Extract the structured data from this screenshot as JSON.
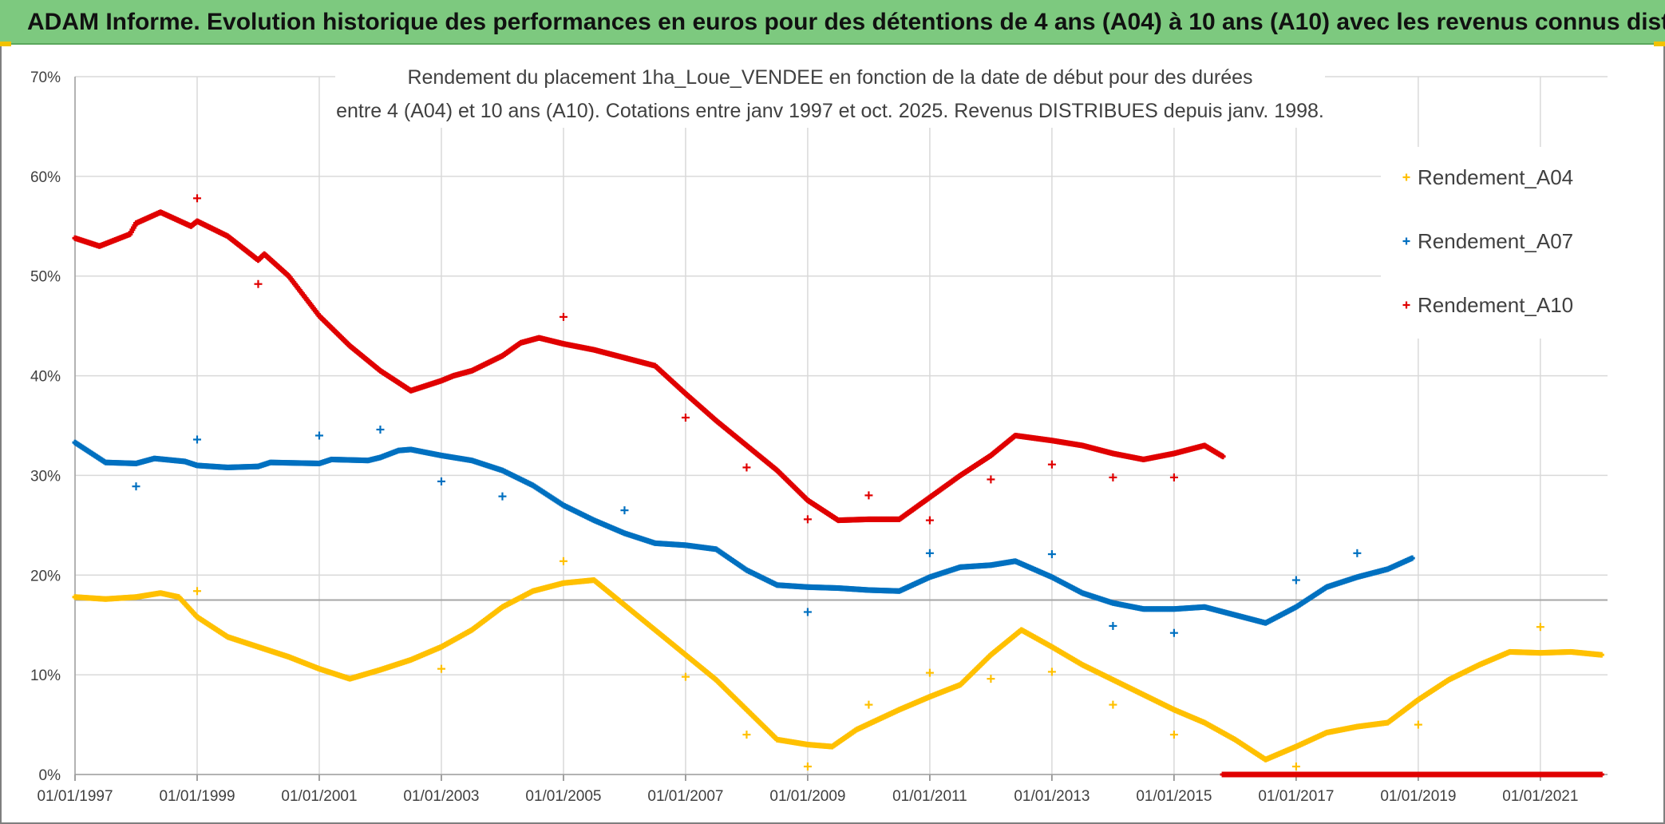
{
  "banner": {
    "title": "ADAM Informe. Evolution historique des performances en euros pour des détentions de 4 ans (A04) à 10 ans (A10) avec les revenus connus distribués"
  },
  "colors": {
    "banner_bg": "#7dc97f",
    "a04": "#ffc000",
    "a07": "#0070c0",
    "a10": "#e00000",
    "grid": "#d9d9d9",
    "reference_line": "#a6a6a6"
  },
  "chart_data": {
    "type": "scatter",
    "title_line1": "Rendement du placement 1ha_Loue_VENDEE en fonction de la date de début pour des durées",
    "title_line2": "entre 4 (A04) et 10 ans (A10). Cotations entre janv 1997 et oct. 2025. Revenus DISTRIBUES depuis janv. 1998.",
    "xlabel": "",
    "ylabel": "",
    "xlim": [
      1997.0,
      2022.1
    ],
    "ylim": [
      0,
      70
    ],
    "x_ticks": [
      1997,
      1999,
      2001,
      2003,
      2005,
      2007,
      2009,
      2011,
      2013,
      2015,
      2017,
      2019,
      2021
    ],
    "x_tick_labels": [
      "01/01/1997",
      "01/01/1999",
      "01/01/2001",
      "01/01/2003",
      "01/01/2005",
      "01/01/2007",
      "01/01/2009",
      "01/01/2011",
      "01/01/2013",
      "01/01/2015",
      "01/01/2017",
      "01/01/2019",
      "01/01/2021"
    ],
    "y_ticks": [
      0,
      10,
      20,
      30,
      40,
      50,
      60,
      70
    ],
    "y_tick_labels": [
      "0%",
      "10%",
      "20%",
      "30%",
      "40%",
      "50%",
      "60%",
      "70%"
    ],
    "reference_line_y": 17.5,
    "legend": [
      "Rendement_A04",
      "Rendement_A07",
      "Rendement_A10"
    ],
    "legend_position": "top-right",
    "series": [
      {
        "name": "Rendement_A04",
        "curve": [
          [
            1997.0,
            17.8
          ],
          [
            1997.5,
            17.6
          ],
          [
            1998.0,
            17.8
          ],
          [
            1998.4,
            18.2
          ],
          [
            1998.7,
            17.8
          ],
          [
            1999.0,
            15.8
          ],
          [
            1999.5,
            13.8
          ],
          [
            2000.0,
            12.8
          ],
          [
            2000.5,
            11.8
          ],
          [
            2001.0,
            10.6
          ],
          [
            2001.5,
            9.6
          ],
          [
            2002.0,
            10.5
          ],
          [
            2002.5,
            11.5
          ],
          [
            2003.0,
            12.8
          ],
          [
            2003.5,
            14.5
          ],
          [
            2004.0,
            16.8
          ],
          [
            2004.5,
            18.4
          ],
          [
            2005.0,
            19.2
          ],
          [
            2005.5,
            19.5
          ],
          [
            2006.0,
            17.0
          ],
          [
            2006.5,
            14.5
          ],
          [
            2007.0,
            12.0
          ],
          [
            2007.5,
            9.5
          ],
          [
            2008.0,
            6.5
          ],
          [
            2008.5,
            3.5
          ],
          [
            2009.0,
            3.0
          ],
          [
            2009.4,
            2.8
          ],
          [
            2009.8,
            4.5
          ],
          [
            2010.5,
            6.5
          ],
          [
            2011.0,
            7.8
          ],
          [
            2011.5,
            9.0
          ],
          [
            2012.0,
            12.0
          ],
          [
            2012.5,
            14.5
          ],
          [
            2013.0,
            12.8
          ],
          [
            2013.5,
            11.0
          ],
          [
            2014.0,
            9.5
          ],
          [
            2014.5,
            8.0
          ],
          [
            2015.0,
            6.5
          ],
          [
            2015.5,
            5.2
          ],
          [
            2016.0,
            3.5
          ],
          [
            2016.5,
            1.5
          ],
          [
            2017.0,
            2.8
          ],
          [
            2017.5,
            4.2
          ],
          [
            2018.0,
            4.8
          ],
          [
            2018.5,
            5.2
          ],
          [
            2019.0,
            7.5
          ],
          [
            2019.5,
            9.5
          ],
          [
            2020.0,
            11.0
          ],
          [
            2020.5,
            12.3
          ],
          [
            2021.0,
            12.2
          ],
          [
            2021.5,
            12.3
          ],
          [
            2022.0,
            12.0
          ]
        ],
        "scatter_points": [
          [
            1999.0,
            18.4
          ],
          [
            2003.0,
            10.6
          ],
          [
            2005.0,
            21.4
          ],
          [
            2007.0,
            9.8
          ],
          [
            2008.0,
            4.0
          ],
          [
            2009.0,
            0.8
          ],
          [
            2010.0,
            7.0
          ],
          [
            2011.0,
            10.2
          ],
          [
            2012.0,
            9.6
          ],
          [
            2013.0,
            10.3
          ],
          [
            2014.0,
            7.0
          ],
          [
            2015.0,
            4.0
          ],
          [
            2017.0,
            0.8
          ],
          [
            2019.0,
            5.0
          ],
          [
            2021.0,
            14.8
          ]
        ]
      },
      {
        "name": "Rendement_A07",
        "curve": [
          [
            1997.0,
            33.3
          ],
          [
            1997.5,
            31.3
          ],
          [
            1998.0,
            31.2
          ],
          [
            1998.3,
            31.7
          ],
          [
            1998.8,
            31.4
          ],
          [
            1999.0,
            31.0
          ],
          [
            1999.5,
            30.8
          ],
          [
            2000.0,
            30.9
          ],
          [
            2000.2,
            31.3
          ],
          [
            2001.0,
            31.2
          ],
          [
            2001.2,
            31.6
          ],
          [
            2001.8,
            31.5
          ],
          [
            2002.0,
            31.8
          ],
          [
            2002.3,
            32.5
          ],
          [
            2002.5,
            32.6
          ],
          [
            2003.0,
            32.0
          ],
          [
            2003.5,
            31.5
          ],
          [
            2004.0,
            30.5
          ],
          [
            2004.5,
            29.0
          ],
          [
            2005.0,
            27.0
          ],
          [
            2005.5,
            25.5
          ],
          [
            2006.0,
            24.2
          ],
          [
            2006.5,
            23.2
          ],
          [
            2007.0,
            23.0
          ],
          [
            2007.5,
            22.6
          ],
          [
            2008.0,
            20.5
          ],
          [
            2008.5,
            19.0
          ],
          [
            2009.0,
            18.8
          ],
          [
            2009.5,
            18.7
          ],
          [
            2010.0,
            18.5
          ],
          [
            2010.5,
            18.4
          ],
          [
            2011.0,
            19.8
          ],
          [
            2011.5,
            20.8
          ],
          [
            2012.0,
            21.0
          ],
          [
            2012.4,
            21.4
          ],
          [
            2013.0,
            19.8
          ],
          [
            2013.5,
            18.2
          ],
          [
            2014.0,
            17.2
          ],
          [
            2014.5,
            16.6
          ],
          [
            2015.0,
            16.6
          ],
          [
            2015.5,
            16.8
          ],
          [
            2016.0,
            16.0
          ],
          [
            2016.5,
            15.2
          ],
          [
            2017.0,
            16.8
          ],
          [
            2017.5,
            18.8
          ],
          [
            2018.0,
            19.8
          ],
          [
            2018.5,
            20.6
          ],
          [
            2018.9,
            21.7
          ]
        ],
        "scatter_points": [
          [
            1998.0,
            28.9
          ],
          [
            1999.0,
            33.6
          ],
          [
            2001.0,
            34.0
          ],
          [
            2002.0,
            34.6
          ],
          [
            2003.0,
            29.4
          ],
          [
            2004.0,
            27.9
          ],
          [
            2006.0,
            26.5
          ],
          [
            2009.0,
            16.3
          ],
          [
            2011.0,
            22.2
          ],
          [
            2013.0,
            22.1
          ],
          [
            2014.0,
            14.9
          ],
          [
            2015.0,
            14.2
          ],
          [
            2017.0,
            19.5
          ],
          [
            2018.0,
            22.2
          ]
        ]
      },
      {
        "name": "Rendement_A10",
        "curve": [
          [
            1997.0,
            53.8
          ],
          [
            1997.4,
            53.0
          ],
          [
            1997.9,
            54.2
          ],
          [
            1998.0,
            55.3
          ],
          [
            1998.4,
            56.4
          ],
          [
            1998.9,
            55.0
          ],
          [
            1999.0,
            55.5
          ],
          [
            1999.5,
            54.0
          ],
          [
            2000.0,
            51.6
          ],
          [
            2000.1,
            52.2
          ],
          [
            2000.5,
            50.0
          ],
          [
            2001.0,
            46.0
          ],
          [
            2001.5,
            43.0
          ],
          [
            2002.0,
            40.5
          ],
          [
            2002.5,
            38.5
          ],
          [
            2003.0,
            39.5
          ],
          [
            2003.2,
            40.0
          ],
          [
            2003.5,
            40.5
          ],
          [
            2004.0,
            42.0
          ],
          [
            2004.3,
            43.3
          ],
          [
            2004.6,
            43.8
          ],
          [
            2005.0,
            43.2
          ],
          [
            2005.5,
            42.6
          ],
          [
            2006.0,
            41.8
          ],
          [
            2006.5,
            41.0
          ],
          [
            2007.0,
            38.2
          ],
          [
            2007.5,
            35.5
          ],
          [
            2008.0,
            33.0
          ],
          [
            2008.5,
            30.5
          ],
          [
            2009.0,
            27.5
          ],
          [
            2009.5,
            25.5
          ],
          [
            2010.0,
            25.6
          ],
          [
            2010.5,
            25.6
          ],
          [
            2011.0,
            27.8
          ],
          [
            2011.5,
            30.0
          ],
          [
            2012.0,
            32.0
          ],
          [
            2012.4,
            34.0
          ],
          [
            2013.0,
            33.5
          ],
          [
            2013.5,
            33.0
          ],
          [
            2014.0,
            32.2
          ],
          [
            2014.5,
            31.6
          ],
          [
            2015.0,
            32.2
          ],
          [
            2015.5,
            33.0
          ],
          [
            2015.8,
            31.9
          ]
        ],
        "zero_segment": [
          2015.8,
          2022.0
        ],
        "scatter_points": [
          [
            1999.0,
            57.8
          ],
          [
            2000.0,
            49.2
          ],
          [
            2005.0,
            45.9
          ],
          [
            2007.0,
            35.8
          ],
          [
            2008.0,
            30.8
          ],
          [
            2009.0,
            25.6
          ],
          [
            2010.0,
            28.0
          ],
          [
            2011.0,
            25.5
          ],
          [
            2012.0,
            29.6
          ],
          [
            2013.0,
            31.1
          ],
          [
            2014.0,
            29.8
          ],
          [
            2015.0,
            29.8
          ]
        ]
      }
    ]
  }
}
